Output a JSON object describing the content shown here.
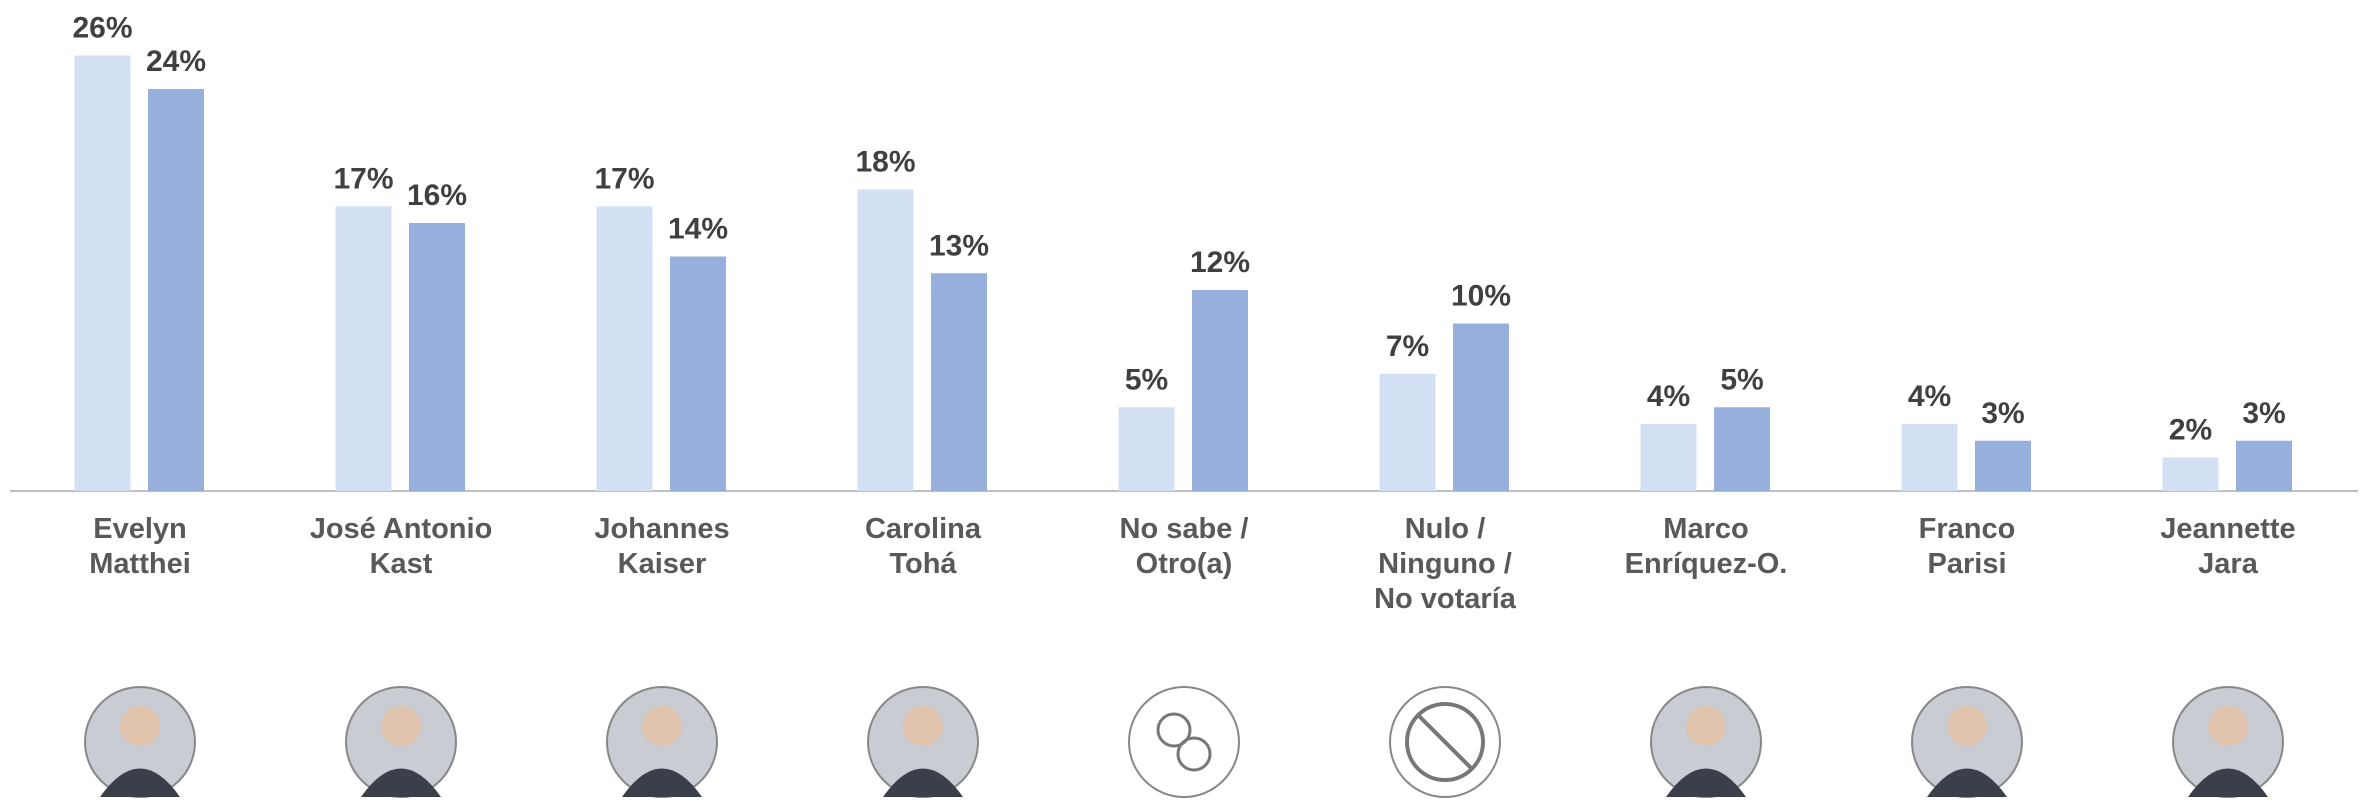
{
  "chart_data": {
    "type": "bar",
    "categories": [
      "Evelyn\nMatthei",
      "José Antonio\nKast",
      "Johannes\nKaiser",
      "Carolina\nTohá",
      "No sabe /\nOtro(a)",
      "Nulo /\nNinguno /\nNo votaría",
      "Marco\nEnríquez-O.",
      "Franco\nParisi",
      "Jeannette\nJara"
    ],
    "series": [
      {
        "color": "#d3e0f4",
        "values": [
          26,
          17,
          17,
          18,
          5,
          7,
          4,
          4,
          2
        ],
        "value_labels": [
          "26%",
          "17%",
          "17%",
          "18%",
          "5%",
          "7%",
          "4%",
          "4%",
          "2%"
        ]
      },
      {
        "color": "#96afdc",
        "values": [
          24,
          16,
          14,
          13,
          12,
          10,
          5,
          3,
          3
        ],
        "value_labels": [
          "24%",
          "16%",
          "14%",
          "13%",
          "12%",
          "10%",
          "5%",
          "3%",
          "3%"
        ]
      }
    ]
  }
}
